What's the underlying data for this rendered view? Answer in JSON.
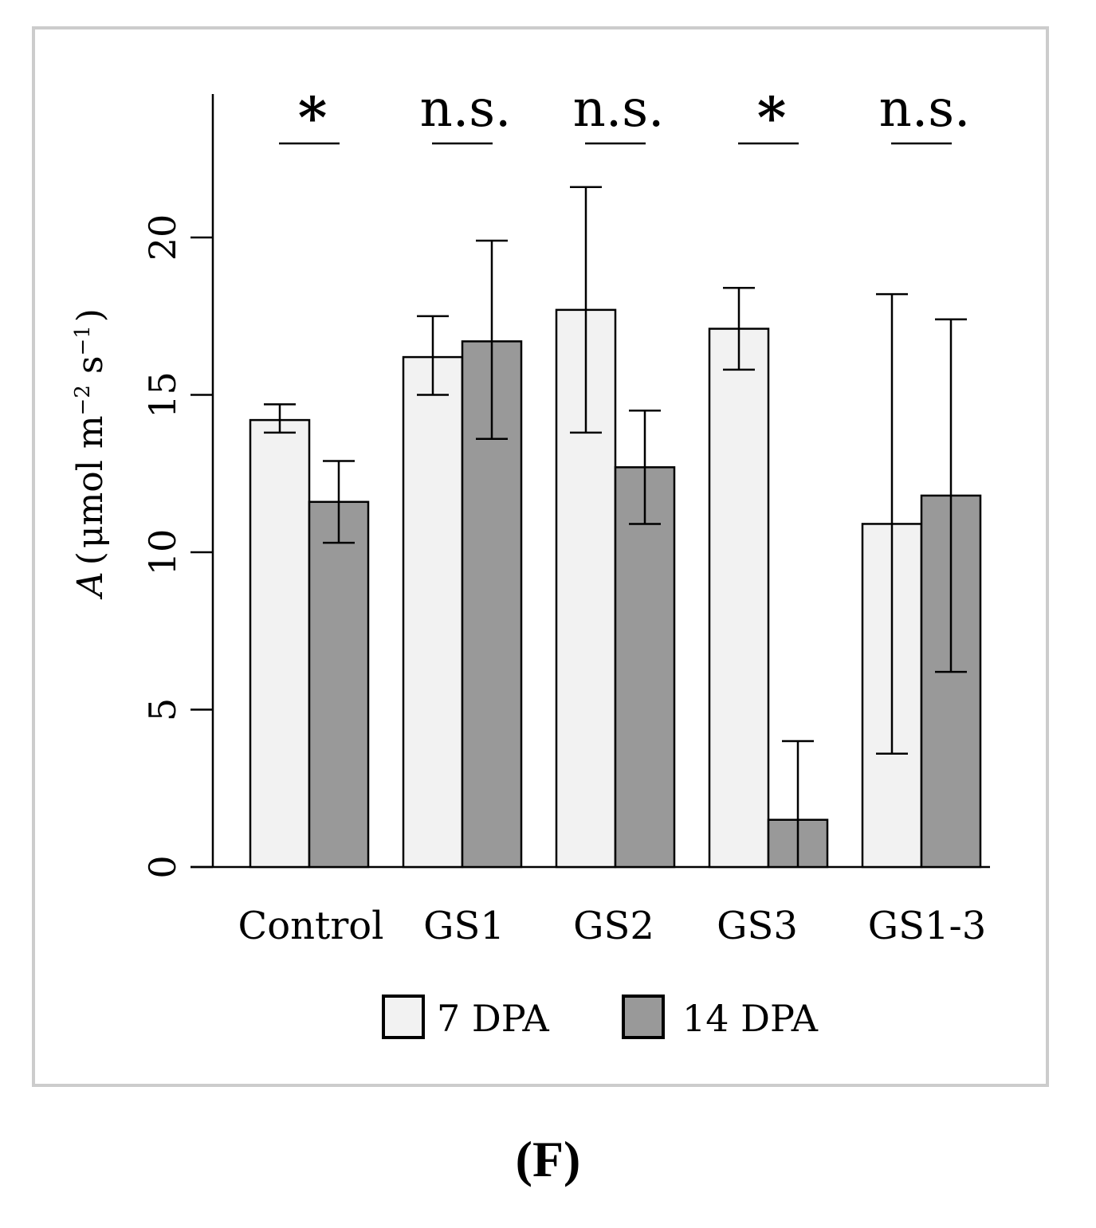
{
  "chart_data": {
    "type": "bar",
    "categories": [
      "Control",
      "GS1",
      "GS2",
      "GS3",
      "GS1-3"
    ],
    "series": [
      {
        "name": "7 DPA",
        "color": "#f2f2f2",
        "values": [
          14.2,
          16.2,
          17.7,
          17.1,
          10.9
        ],
        "error_low": [
          13.8,
          15.0,
          13.8,
          15.8,
          3.6
        ],
        "error_high": [
          14.7,
          17.5,
          21.6,
          18.4,
          18.2
        ]
      },
      {
        "name": "14 DPA",
        "color": "#999999",
        "values": [
          11.6,
          16.7,
          12.7,
          1.5,
          11.8
        ],
        "error_low": [
          10.3,
          13.6,
          10.9,
          0.0,
          6.2
        ],
        "error_high": [
          12.9,
          19.9,
          14.5,
          4.0,
          17.4
        ]
      }
    ],
    "significance": [
      "*",
      "n.s.",
      "n.s.",
      "*",
      "n.s."
    ],
    "ylabel": {
      "symbol": "A",
      "open": "(",
      "unit_pre": "μmol m",
      "exp1": "−2",
      "unit_mid": " s",
      "exp2": "−1",
      "close": ")"
    },
    "xlabel": "",
    "ylim": [
      0,
      24.5
    ],
    "yticks": [
      0,
      5,
      10,
      15,
      20
    ],
    "legend_position": "bottom"
  },
  "panel_label": "(F)"
}
